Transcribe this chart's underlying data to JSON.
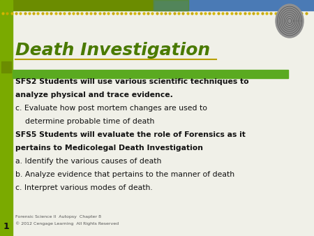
{
  "title": "Death Investigation",
  "title_color": "#4a7a00",
  "bg_color": "#f0f0e8",
  "top_bar_green": "#6b8c00",
  "top_bar_blue": "#4a7ab5",
  "dot_color1": "#d4b800",
  "dot_color2": "#c8a800",
  "left_bar_color": "#7aaa00",
  "left_square_color": "#6b8c00",
  "header_bar_color": "#5aaa20",
  "slide_number": "1",
  "footer_line1": "Forensic Science II  Autopsy  Chapter 8",
  "footer_line2": "© 2012 Cengage Learning  All Rights Reserved",
  "content_lines": [
    {
      "text": "SFS2 Students will use various scientific techniques to",
      "bold": true
    },
    {
      "text": "analyze physical and trace evidence.",
      "bold": true
    },
    {
      "text": "c. Evaluate how post mortem changes are used to",
      "bold": false
    },
    {
      "text": "    determine probable time of death",
      "bold": false
    },
    {
      "text": "SFS5 Students will evaluate the role of Forensics as it",
      "bold": true
    },
    {
      "text": "pertains to Medicolegal Death Investigation",
      "bold": true
    },
    {
      "text": "a. Identify the various causes of death",
      "bold": false
    },
    {
      "text": "b. Analyze evidence that pertains to the manner of death",
      "bold": false
    },
    {
      "text": "c. Interpret various modes of death.",
      "bold": false
    }
  ]
}
